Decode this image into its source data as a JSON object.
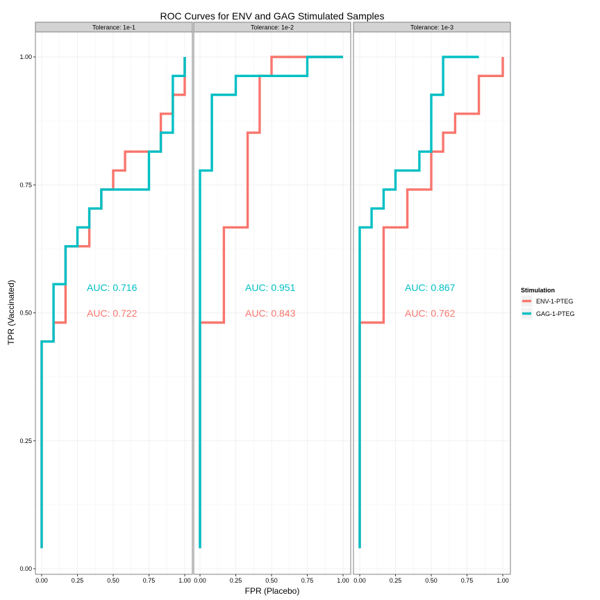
{
  "colors": {
    "env": "#F8766D",
    "gag": "#00BFC4",
    "strip_bg": "#D3D3D3",
    "panel_border": "#7F7F7F",
    "grid": "#F0F0F0"
  },
  "chart_data": {
    "type": "line",
    "title": "ROC Curves for ENV and GAG Stimulated Samples",
    "xlabel": "FPR (Placebo)",
    "ylabel": "TPR (Vaccinated)",
    "xlim": [
      0,
      1
    ],
    "ylim": [
      0,
      1
    ],
    "x_ticks": [
      "0.00",
      "0.25",
      "0.50",
      "0.75",
      "1.00"
    ],
    "y_ticks": [
      "0.00",
      "0.25",
      "0.50",
      "0.75",
      "1.00"
    ],
    "grid": true,
    "legend": {
      "title": "Stimulation",
      "position": "right",
      "entries": [
        "ENV-1-PTEG",
        "GAG-1-PTEG"
      ]
    },
    "panels": [
      {
        "label": "Tolerance: 1e-1",
        "series": [
          {
            "name": "ENV-1-PTEG",
            "color_key": "env",
            "auc_label": "AUC: 0.722",
            "points": [
              [
                0,
                0.04
              ],
              [
                0,
                0.444
              ],
              [
                0.083,
                0.444
              ],
              [
                0.083,
                0.481
              ],
              [
                0.167,
                0.481
              ],
              [
                0.167,
                0.63
              ],
              [
                0.333,
                0.63
              ],
              [
                0.333,
                0.704
              ],
              [
                0.417,
                0.704
              ],
              [
                0.417,
                0.741
              ],
              [
                0.5,
                0.741
              ],
              [
                0.5,
                0.778
              ],
              [
                0.583,
                0.778
              ],
              [
                0.583,
                0.815
              ],
              [
                0.833,
                0.815
              ],
              [
                0.833,
                0.889
              ],
              [
                0.917,
                0.889
              ],
              [
                0.917,
                0.926
              ],
              [
                1.0,
                0.926
              ],
              [
                1.0,
                1.0
              ]
            ]
          },
          {
            "name": "GAG-1-PTEG",
            "color_key": "gag",
            "auc_label": "AUC: 0.716",
            "points": [
              [
                0,
                0.04
              ],
              [
                0,
                0.444
              ],
              [
                0.083,
                0.444
              ],
              [
                0.083,
                0.556
              ],
              [
                0.167,
                0.556
              ],
              [
                0.167,
                0.63
              ],
              [
                0.25,
                0.63
              ],
              [
                0.25,
                0.667
              ],
              [
                0.333,
                0.667
              ],
              [
                0.333,
                0.704
              ],
              [
                0.417,
                0.704
              ],
              [
                0.417,
                0.741
              ],
              [
                0.75,
                0.741
              ],
              [
                0.75,
                0.815
              ],
              [
                0.833,
                0.815
              ],
              [
                0.833,
                0.852
              ],
              [
                0.917,
                0.852
              ],
              [
                0.917,
                0.963
              ],
              [
                1.0,
                0.963
              ],
              [
                1.0,
                1.0
              ]
            ]
          }
        ]
      },
      {
        "label": "Tolerance: 1e-2",
        "series": [
          {
            "name": "ENV-1-PTEG",
            "color_key": "env",
            "auc_label": "AUC: 0.843",
            "points": [
              [
                0,
                0.04
              ],
              [
                0,
                0.481
              ],
              [
                0.167,
                0.481
              ],
              [
                0.167,
                0.667
              ],
              [
                0.333,
                0.667
              ],
              [
                0.333,
                0.852
              ],
              [
                0.417,
                0.852
              ],
              [
                0.417,
                0.963
              ],
              [
                0.5,
                0.963
              ],
              [
                0.5,
                1.0
              ],
              [
                1.0,
                1.0
              ]
            ]
          },
          {
            "name": "GAG-1-PTEG",
            "color_key": "gag",
            "auc_label": "AUC: 0.951",
            "points": [
              [
                0,
                0.04
              ],
              [
                0,
                0.778
              ],
              [
                0.083,
                0.778
              ],
              [
                0.083,
                0.926
              ],
              [
                0.25,
                0.926
              ],
              [
                0.25,
                0.963
              ],
              [
                0.75,
                0.963
              ],
              [
                0.75,
                1.0
              ],
              [
                1.0,
                1.0
              ]
            ]
          }
        ]
      },
      {
        "label": "Tolerance: 1e-3",
        "series": [
          {
            "name": "ENV-1-PTEG",
            "color_key": "env",
            "auc_label": "AUC: 0.762",
            "points": [
              [
                0,
                0.04
              ],
              [
                0,
                0.481
              ],
              [
                0.167,
                0.481
              ],
              [
                0.167,
                0.667
              ],
              [
                0.333,
                0.667
              ],
              [
                0.333,
                0.741
              ],
              [
                0.5,
                0.741
              ],
              [
                0.5,
                0.815
              ],
              [
                0.583,
                0.815
              ],
              [
                0.583,
                0.852
              ],
              [
                0.667,
                0.852
              ],
              [
                0.667,
                0.889
              ],
              [
                0.833,
                0.889
              ],
              [
                0.833,
                0.963
              ],
              [
                1.0,
                0.963
              ],
              [
                1.0,
                1.0
              ]
            ]
          },
          {
            "name": "GAG-1-PTEG",
            "color_key": "gag",
            "auc_label": "AUC: 0.867",
            "points": [
              [
                0,
                0.04
              ],
              [
                0,
                0.667
              ],
              [
                0.083,
                0.667
              ],
              [
                0.083,
                0.704
              ],
              [
                0.167,
                0.704
              ],
              [
                0.167,
                0.741
              ],
              [
                0.25,
                0.741
              ],
              [
                0.25,
                0.778
              ],
              [
                0.417,
                0.778
              ],
              [
                0.417,
                0.815
              ],
              [
                0.5,
                0.815
              ],
              [
                0.5,
                0.926
              ],
              [
                0.583,
                0.926
              ],
              [
                0.583,
                1.0
              ],
              [
                0.833,
                1.0
              ]
            ]
          }
        ]
      }
    ]
  }
}
